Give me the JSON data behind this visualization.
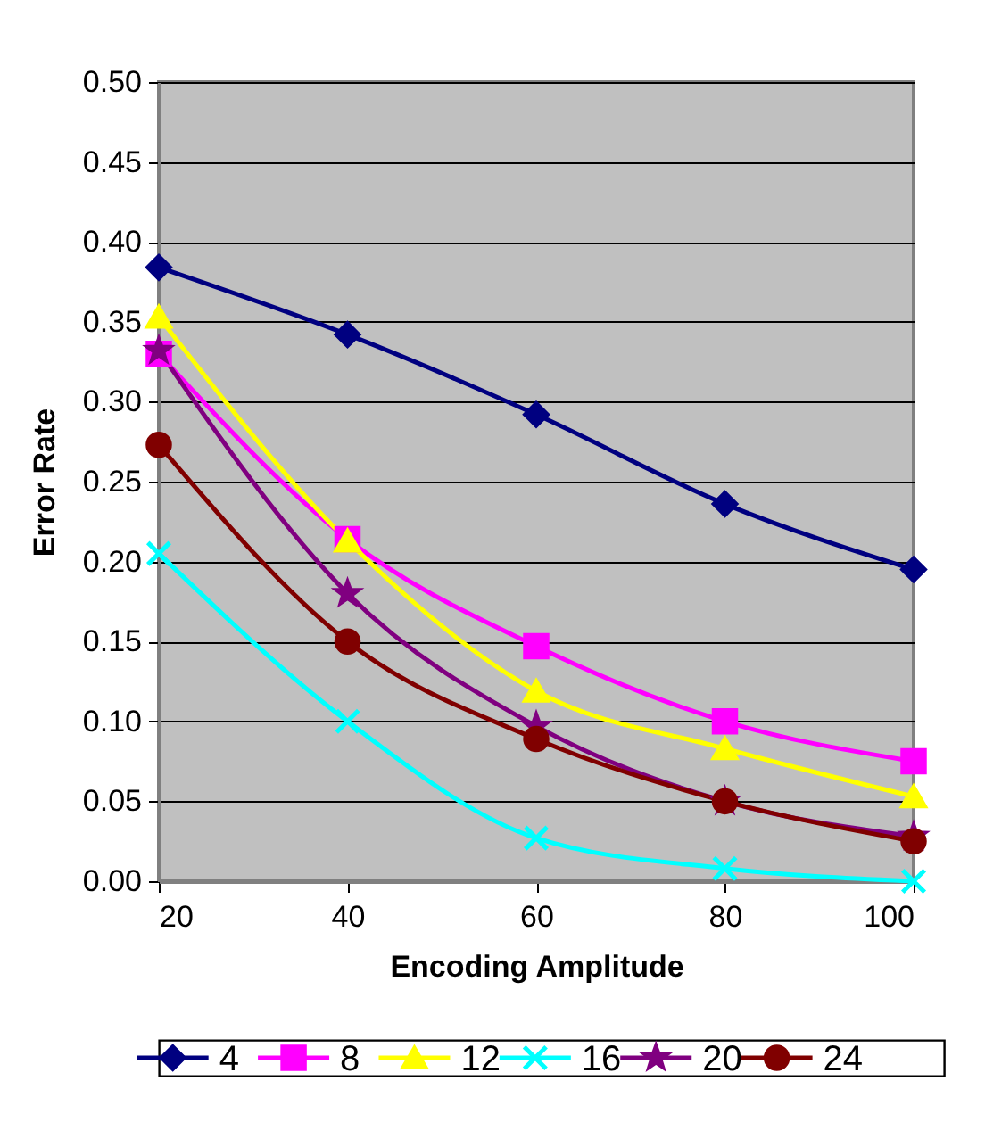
{
  "chart_data": {
    "type": "line",
    "xlabel": "Encoding Amplitude",
    "ylabel": "Error Rate",
    "x": [
      20,
      40,
      60,
      80,
      100
    ],
    "series": [
      {
        "name": "4",
        "color": "#000080",
        "marker": "diamond",
        "values": [
          0.384,
          0.342,
          0.292,
          0.236,
          0.195
        ]
      },
      {
        "name": "8",
        "color": "#ff00ff",
        "marker": "square",
        "values": [
          0.33,
          0.214,
          0.147,
          0.1,
          0.075
        ]
      },
      {
        "name": "12",
        "color": "#ffff00",
        "marker": "triangle",
        "values": [
          0.353,
          0.213,
          0.119,
          0.083,
          0.053
        ]
      },
      {
        "name": "16",
        "color": "#00ffff",
        "marker": "cross",
        "values": [
          0.205,
          0.1,
          0.027,
          0.008,
          0.0
        ]
      },
      {
        "name": "20",
        "color": "#800080",
        "marker": "star",
        "values": [
          0.332,
          0.18,
          0.097,
          0.05,
          0.028
        ]
      },
      {
        "name": "24",
        "color": "#800000",
        "marker": "circle",
        "values": [
          0.273,
          0.15,
          0.089,
          0.05,
          0.025
        ]
      }
    ],
    "xlim": [
      20,
      100
    ],
    "xticks": [
      20,
      40,
      60,
      80,
      100
    ],
    "ylim": [
      0,
      0.5
    ],
    "yticks": [
      {
        "value": 0,
        "label": "0.00"
      },
      {
        "value": 0.05,
        "label": "0.05"
      },
      {
        "value": 0.1,
        "label": "0.10"
      },
      {
        "value": 0.15,
        "label": "0.15"
      },
      {
        "value": 0.2,
        "label": "0.20"
      },
      {
        "value": 0.25,
        "label": "0.25"
      },
      {
        "value": 0.3,
        "label": "0.30"
      },
      {
        "value": 0.35,
        "label": "0.35"
      },
      {
        "value": 0.4,
        "label": "0.40"
      },
      {
        "value": 0.45,
        "label": "0.45"
      },
      {
        "value": 0.5,
        "label": "0.50"
      }
    ],
    "grid": "y",
    "legend": "bottom"
  }
}
